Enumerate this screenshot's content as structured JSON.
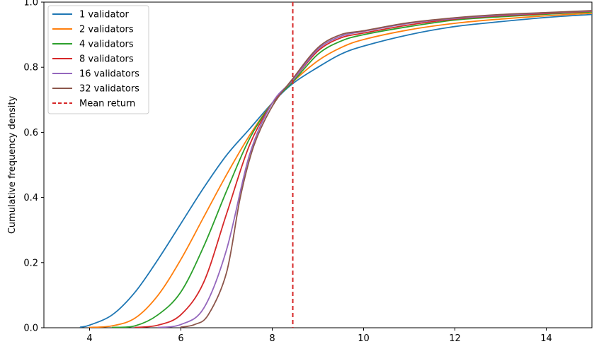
{
  "chart_data": {
    "type": "line",
    "title": "",
    "xlabel": "",
    "ylabel": "Cumulative frequency density",
    "xlim": [
      3,
      15
    ],
    "ylim": [
      0,
      1.0
    ],
    "x_ticks": [
      4,
      6,
      8,
      10,
      12,
      14
    ],
    "y_ticks": [
      0.0,
      0.2,
      0.4,
      0.6,
      0.8,
      1.0
    ],
    "x_tick_labels": [
      "4",
      "6",
      "8",
      "10",
      "12",
      "14"
    ],
    "y_tick_labels": [
      "0.0",
      "0.2",
      "0.4",
      "0.6",
      "0.8",
      "1.0"
    ],
    "grid": false,
    "legend_position": "top-left",
    "mean_return": {
      "name": "Mean return",
      "x": 8.45,
      "color": "#d62728",
      "style": "dashed"
    },
    "series": [
      {
        "name": "1 validator",
        "color": "#1f77b4",
        "x": [
          3.8,
          4.0,
          4.5,
          5.0,
          5.5,
          6.0,
          6.5,
          7.0,
          7.5,
          8.0,
          8.45,
          9.0,
          9.5,
          10.0,
          11.0,
          12.0,
          13.0,
          14.0,
          15.0
        ],
        "y": [
          0.002,
          0.008,
          0.04,
          0.11,
          0.21,
          0.32,
          0.43,
          0.53,
          0.61,
          0.69,
          0.75,
          0.8,
          0.84,
          0.865,
          0.9,
          0.925,
          0.94,
          0.953,
          0.962
        ]
      },
      {
        "name": "2 validators",
        "color": "#ff7f0e",
        "x": [
          4.0,
          4.5,
          5.0,
          5.5,
          6.0,
          6.5,
          7.0,
          7.5,
          8.0,
          8.45,
          9.0,
          9.5,
          10.0,
          11.0,
          12.0,
          13.0,
          14.0,
          15.0
        ],
        "y": [
          0.001,
          0.006,
          0.03,
          0.1,
          0.21,
          0.34,
          0.47,
          0.59,
          0.69,
          0.755,
          0.82,
          0.86,
          0.885,
          0.915,
          0.935,
          0.948,
          0.958,
          0.966
        ]
      },
      {
        "name": "4 validators",
        "color": "#2ca02c",
        "x": [
          4.5,
          5.0,
          5.5,
          6.0,
          6.5,
          7.0,
          7.5,
          8.0,
          8.45,
          9.0,
          9.5,
          10.0,
          11.0,
          12.0,
          13.0,
          14.0,
          15.0
        ],
        "y": [
          0.001,
          0.006,
          0.04,
          0.11,
          0.25,
          0.42,
          0.58,
          0.69,
          0.755,
          0.84,
          0.88,
          0.9,
          0.925,
          0.945,
          0.955,
          0.963,
          0.97
        ]
      },
      {
        "name": "8 validators",
        "color": "#d62728",
        "x": [
          5.0,
          5.5,
          6.0,
          6.5,
          7.0,
          7.5,
          8.0,
          8.45,
          9.0,
          9.5,
          10.0,
          11.0,
          12.0,
          13.0,
          14.0,
          15.0
        ],
        "y": [
          0.001,
          0.008,
          0.04,
          0.14,
          0.35,
          0.56,
          0.69,
          0.76,
          0.85,
          0.89,
          0.905,
          0.93,
          0.948,
          0.958,
          0.965,
          0.972
        ]
      },
      {
        "name": "16 validators",
        "color": "#9467bd",
        "x": [
          5.5,
          6.0,
          6.5,
          7.0,
          7.5,
          8.0,
          8.45,
          9.0,
          9.5,
          10.0,
          11.0,
          12.0,
          13.0,
          14.0,
          15.0
        ],
        "y": [
          0.001,
          0.01,
          0.06,
          0.24,
          0.53,
          0.69,
          0.76,
          0.855,
          0.895,
          0.91,
          0.935,
          0.95,
          0.96,
          0.967,
          0.973
        ]
      },
      {
        "name": "32 validators",
        "color": "#8c564b",
        "x": [
          6.0,
          6.3,
          6.6,
          7.0,
          7.3,
          7.6,
          8.0,
          8.45,
          9.0,
          9.5,
          10.0,
          11.0,
          12.0,
          13.0,
          14.0,
          15.0
        ],
        "y": [
          0.002,
          0.01,
          0.04,
          0.17,
          0.4,
          0.56,
          0.68,
          0.765,
          0.86,
          0.9,
          0.912,
          0.937,
          0.952,
          0.962,
          0.968,
          0.974
        ]
      }
    ]
  }
}
